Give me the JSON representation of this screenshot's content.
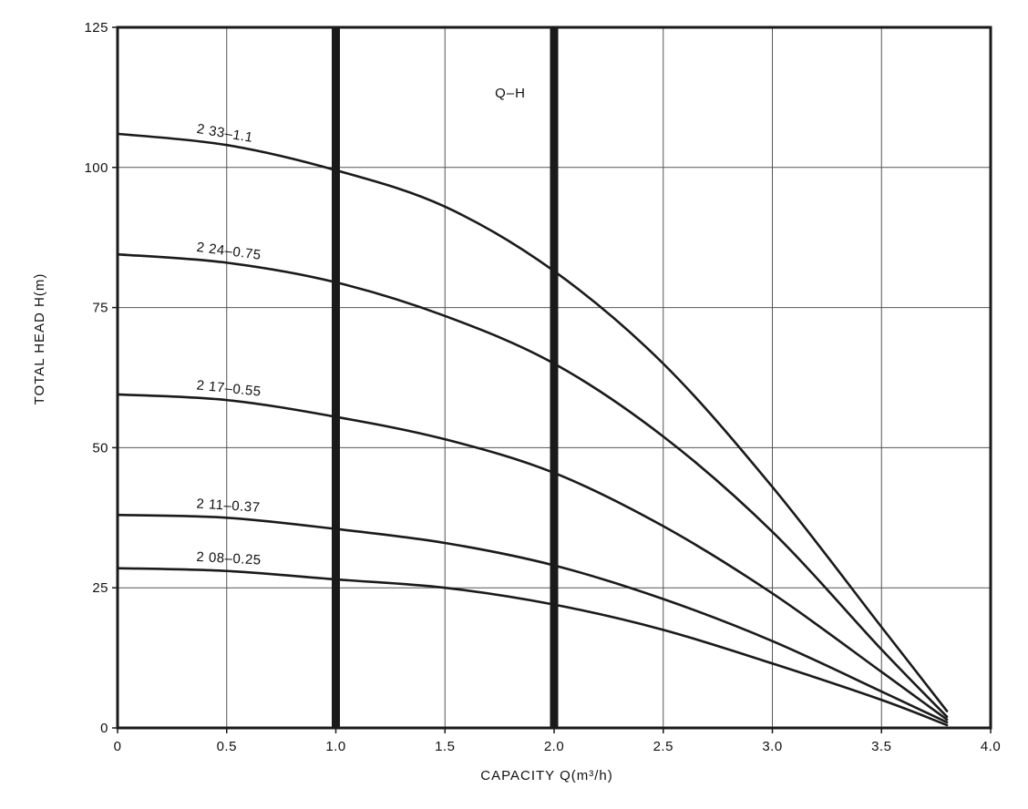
{
  "chart_data": {
    "type": "line",
    "title": "Q–H",
    "xlabel": "CAPACITY Q(m³/h)",
    "ylabel": "TOTAL HEAD H(m)",
    "xlim": [
      0,
      4.0
    ],
    "ylim": [
      0,
      125
    ],
    "x_ticks": [
      "0",
      "0.5",
      "1.0",
      "1.5",
      "2.0",
      "2.5",
      "3.0",
      "3.5",
      "4.0"
    ],
    "y_ticks": [
      "0",
      "25",
      "50",
      "75",
      "100",
      "125"
    ],
    "grid": true,
    "highlight_x": [
      1.0,
      2.0
    ],
    "series": [
      {
        "name": "2 33–1.1",
        "x": [
          0,
          0.5,
          1.0,
          1.5,
          2.0,
          2.5,
          3.0,
          3.5,
          3.8
        ],
        "y": [
          106,
          104,
          99.5,
          93,
          81.5,
          65,
          43,
          18,
          3
        ]
      },
      {
        "name": "2 24–0.75",
        "x": [
          0,
          0.5,
          1.0,
          1.5,
          2.0,
          2.5,
          3.0,
          3.5,
          3.8
        ],
        "y": [
          84.5,
          83,
          79.5,
          73.5,
          65,
          52,
          35,
          14,
          2
        ]
      },
      {
        "name": "2 17–0.55",
        "x": [
          0,
          0.5,
          1.0,
          1.5,
          2.0,
          2.5,
          3.0,
          3.5,
          3.8
        ],
        "y": [
          59.5,
          58.5,
          55.5,
          51.5,
          45.5,
          36,
          24,
          10,
          1.5
        ]
      },
      {
        "name": "2 11–0.37",
        "x": [
          0,
          0.5,
          1.0,
          1.5,
          2.0,
          2.5,
          3.0,
          3.5,
          3.8
        ],
        "y": [
          38,
          37.5,
          35.5,
          33,
          29,
          23,
          15.5,
          6.5,
          1
        ]
      },
      {
        "name": "2 08–0.25",
        "x": [
          0,
          0.5,
          1.0,
          1.5,
          2.0,
          2.5,
          3.0,
          3.5,
          3.8
        ],
        "y": [
          28.5,
          28,
          26.5,
          25,
          22,
          17.5,
          11.5,
          5,
          0.5
        ]
      }
    ]
  }
}
